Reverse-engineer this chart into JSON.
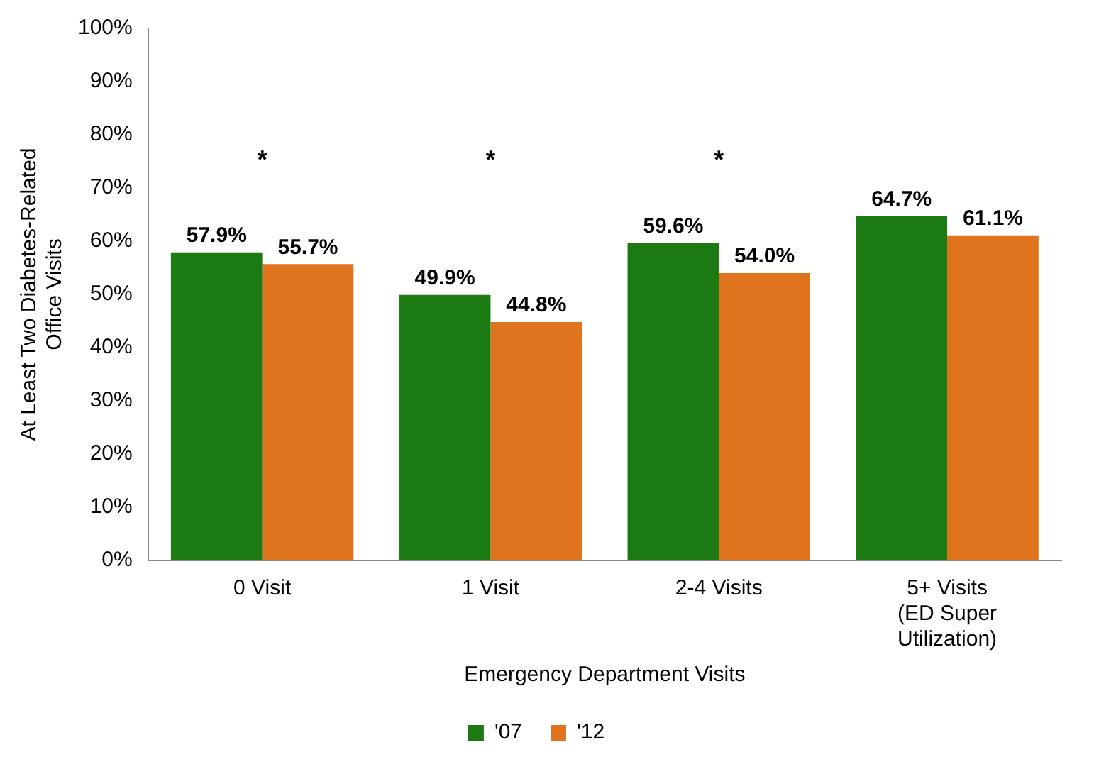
{
  "chart_data": {
    "type": "bar",
    "xlabel": "Emergency Department Visits",
    "ylabel": "At Least Two Diabetes-Related Office Visits",
    "categories": [
      "0 Visit",
      "1 Visit",
      "2-4 Visits",
      "5+ Visits (ED Super Utilization)"
    ],
    "series": [
      {
        "name": "'07",
        "color": "#1b7a12",
        "values": [
          57.9,
          49.9,
          59.6,
          64.7
        ],
        "value_labels": [
          "57.9%",
          "49.9%",
          "59.6%",
          "64.7%"
        ]
      },
      {
        "name": "'12",
        "color": "#e0731e",
        "values": [
          55.7,
          44.8,
          54.0,
          61.1
        ],
        "value_labels": [
          "55.7%",
          "44.8%",
          "54.0%",
          "61.1%"
        ]
      }
    ],
    "ylim": [
      0,
      100
    ],
    "yticks": [
      {
        "value": 0,
        "label": "0%"
      },
      {
        "value": 10,
        "label": "10%"
      },
      {
        "value": 20,
        "label": "20%"
      },
      {
        "value": 30,
        "label": "30%"
      },
      {
        "value": 40,
        "label": "40%"
      },
      {
        "value": 50,
        "label": "50%"
      },
      {
        "value": 60,
        "label": "60%"
      },
      {
        "value": 70,
        "label": "70%"
      },
      {
        "value": 80,
        "label": "80%"
      },
      {
        "value": 90,
        "label": "90%"
      },
      {
        "value": 100,
        "label": "100%"
      }
    ],
    "annotations": [
      "*",
      "*",
      "*"
    ],
    "grid": false,
    "legend": "bottom"
  }
}
